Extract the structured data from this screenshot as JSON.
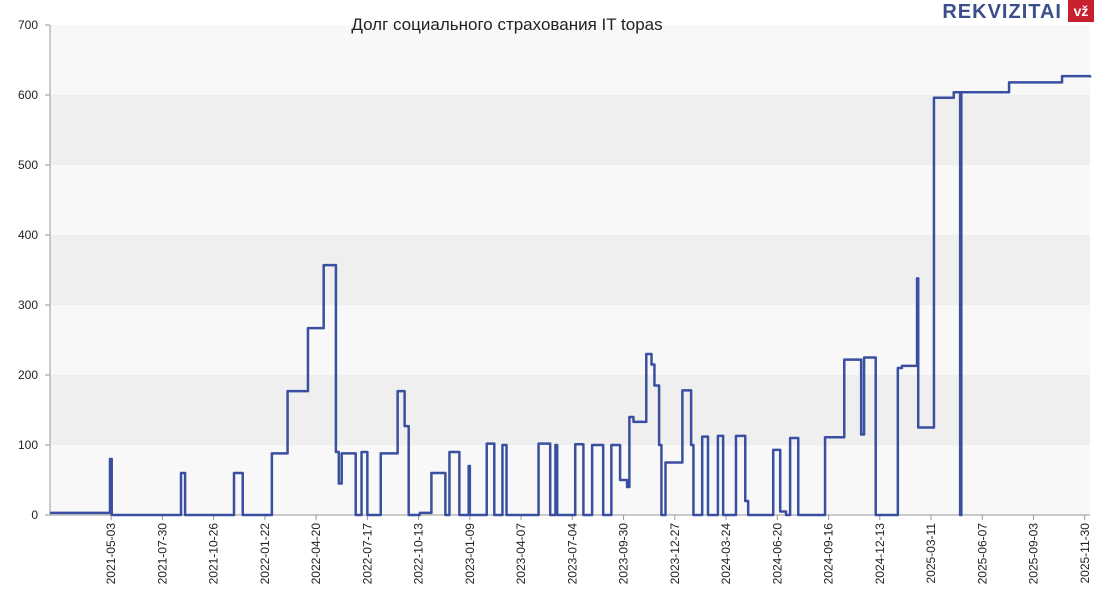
{
  "chart_data": {
    "type": "line",
    "step": "post",
    "title": "Долг социального страхования IT topas",
    "logo": "REKVIZITAI",
    "logo_badge": "vž",
    "color": "#3a4fa0",
    "band_colors": [
      "#f8f8f8",
      "#efefef"
    ],
    "xlim": [
      "2021-01-18",
      "2025-12-09"
    ],
    "xticks": [
      "2021-05-03",
      "2021-07-30",
      "2021-10-26",
      "2022-01-22",
      "2022-04-20",
      "2022-07-17",
      "2022-10-13",
      "2023-01-09",
      "2023-04-07",
      "2023-07-04",
      "2023-09-30",
      "2023-12-27",
      "2024-03-24",
      "2024-06-20",
      "2024-09-16",
      "2024-12-13",
      "2025-03-11",
      "2025-06-07",
      "2025-09-03",
      "2025-11-30"
    ],
    "ylim": [
      0,
      700
    ],
    "yticks": [
      0,
      100,
      200,
      300,
      400,
      500,
      600,
      700
    ],
    "x": [
      "2021-01-18",
      "2021-03-28",
      "2021-05-01",
      "2021-05-04",
      "2021-08-31",
      "2021-09-07",
      "2021-11-30",
      "2021-12-15",
      "2022-02-03",
      "2022-03-02",
      "2022-04-06",
      "2022-05-03",
      "2022-05-24",
      "2022-05-29",
      "2022-06-03",
      "2022-06-27",
      "2022-07-07",
      "2022-07-17",
      "2022-08-09",
      "2022-09-07",
      "2022-09-19",
      "2022-09-26",
      "2022-10-15",
      "2022-11-04",
      "2022-11-28",
      "2022-12-05",
      "2022-12-22",
      "2023-01-07",
      "2023-01-09",
      "2023-02-07",
      "2023-02-20",
      "2023-03-06",
      "2023-03-13",
      "2023-05-07",
      "2023-05-27",
      "2023-06-05",
      "2023-06-08",
      "2023-07-09",
      "2023-07-23",
      "2023-08-07",
      "2023-08-26",
      "2023-09-09",
      "2023-09-24",
      "2023-10-06",
      "2023-10-10",
      "2023-10-17",
      "2023-11-08",
      "2023-11-17",
      "2023-11-22",
      "2023-11-30",
      "2023-12-04",
      "2023-12-11",
      "2024-01-09",
      "2024-01-24",
      "2024-01-28",
      "2024-02-12",
      "2024-02-22",
      "2024-03-10",
      "2024-03-19",
      "2024-04-10",
      "2024-04-26",
      "2024-05-01",
      "2024-06-13",
      "2024-06-25",
      "2024-07-05",
      "2024-07-12",
      "2024-07-26",
      "2024-09-10",
      "2024-10-13",
      "2024-11-11",
      "2024-11-16",
      "2024-12-06",
      "2025-01-13",
      "2025-01-20",
      "2025-02-15",
      "2025-02-17",
      "2025-03-16",
      "2025-04-19",
      "2025-04-30",
      "2025-05-02",
      "2025-07-23",
      "2025-10-22",
      "2025-12-09"
    ],
    "values": [
      3,
      3,
      80,
      0,
      60,
      0,
      60,
      0,
      88,
      177,
      267,
      357,
      90,
      45,
      88,
      0,
      90,
      0,
      88,
      177,
      127,
      0,
      3,
      60,
      0,
      90,
      0,
      70,
      0,
      102,
      0,
      100,
      0,
      102,
      0,
      100,
      0,
      101,
      0,
      100,
      0,
      100,
      50,
      40,
      140,
      133,
      230,
      215,
      185,
      100,
      0,
      75,
      178,
      100,
      0,
      112,
      0,
      113,
      0,
      113,
      20,
      0,
      93,
      5,
      0,
      110,
      0,
      111,
      222,
      115,
      225,
      0,
      210,
      213,
      338,
      125,
      596,
      604,
      0,
      604,
      618,
      627,
      625
    ]
  }
}
